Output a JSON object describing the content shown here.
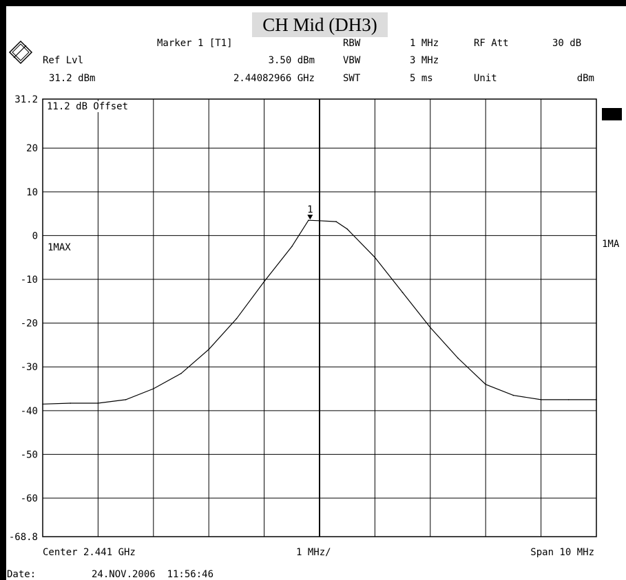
{
  "title": "CH Mid (DH3)",
  "header": {
    "marker_label": "Marker 1 [T1]",
    "marker_level": "3.50 dBm",
    "marker_freq": "2.44082966 GHz",
    "ref_lvl_label": "Ref Lvl",
    "ref_lvl_value": "31.2 dBm",
    "rbw_label": "RBW",
    "rbw_value": "1 MHz",
    "vbw_label": "VBW",
    "vbw_value": "3 MHz",
    "swt_label": "SWT",
    "swt_value": "5 ms",
    "rf_att_label": "RF Att",
    "rf_att_value": "30 dB",
    "unit_label": "Unit",
    "unit_value": "dBm"
  },
  "offset_note": "11.2 dB Offset",
  "trace_label_left": "1MAX",
  "trace_label_right": "1MA",
  "marker_number": "1",
  "footer": {
    "center": "Center 2.441 GHz",
    "div": "1 MHz/",
    "span": "Span 10 MHz",
    "date_label": "Date:",
    "date_value": "24.NOV.2006  11:56:46"
  },
  "colors": {
    "trace": "#000000",
    "grid": "#000000",
    "title_bg": "#dcdcdc"
  },
  "chart_data": {
    "type": "line",
    "title": "CH Mid (DH3)",
    "xlabel": "",
    "ylabel": "",
    "xlim": [
      2.436,
      2.446
    ],
    "ylim": [
      -68.8,
      31.2
    ],
    "yticks": [
      31.2,
      20,
      10,
      0,
      -10,
      -20,
      -30,
      -40,
      -50,
      -60,
      -68.8
    ],
    "ytick_labels": [
      "31.2",
      "20",
      "10",
      "0",
      "-10",
      "-20",
      "-30",
      "-40",
      "-50",
      "-60",
      "-68.8"
    ],
    "grid": true,
    "series": [
      {
        "name": "1MAX",
        "x": [
          2.436,
          2.4365,
          2.437,
          2.4375,
          2.438,
          2.4385,
          2.439,
          2.4395,
          2.44,
          2.4405,
          2.4408,
          2.441,
          2.4413,
          2.4415,
          2.442,
          2.4425,
          2.443,
          2.4435,
          2.444,
          2.4445,
          2.445,
          2.4455,
          2.446
        ],
        "values": [
          -38.5,
          -38.3,
          -38.3,
          -37.5,
          -35,
          -31.5,
          -26,
          -19,
          -10.5,
          -2.5,
          3.5,
          3.4,
          3.2,
          1.5,
          -5,
          -13,
          -21,
          -28,
          -34,
          -36.5,
          -37.5,
          -37.5,
          -37.5
        ]
      }
    ],
    "markers": [
      {
        "label": "1",
        "x": 2.44082966,
        "y": 3.5
      }
    ]
  }
}
